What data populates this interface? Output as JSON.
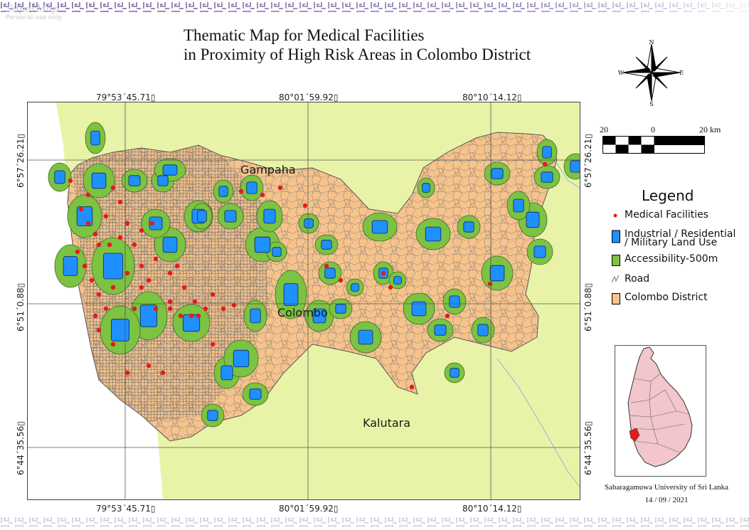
{
  "watermark": {
    "name": "SuperMap",
    "sub": "Personal use only"
  },
  "title": {
    "line1": "Thematic Map for Medical Facilities",
    "line2": "in Proximity of High Risk Areas in Colombo District"
  },
  "north_arrow": {
    "n": "N",
    "s": "S",
    "e": "E",
    "w": "W"
  },
  "grid": {
    "lon_labels": [
      "79°53´45.71▯",
      "80°01´59.92▯",
      "80°10´14.12▯"
    ],
    "lat_labels": [
      "6°57´26.21▯",
      "6°51´0.88▯",
      "6°44´35.56▯"
    ]
  },
  "places": {
    "gampaha": "Gampaha",
    "colombo": "Colombo",
    "kalutara": "Kalutara"
  },
  "scale_bar": {
    "left": "20",
    "mid": "0",
    "right": "20 km"
  },
  "legend": {
    "title": "Legend",
    "items": [
      {
        "label": "Medical Facilities",
        "color": "#e8191c"
      },
      {
        "label_line1": "Industrial / Residential",
        "label_line2": "/ Military Land Use",
        "color": "#1e90ff"
      },
      {
        "label": "Accessibility-500m",
        "color": "#7cc243"
      },
      {
        "label": "Road",
        "color": "#6e6e6e"
      },
      {
        "label": "Colombo District",
        "color": "#f6c38c"
      }
    ]
  },
  "credit": {
    "line1": "Sabaragamuwa University of Sri Lanka",
    "line2": "14 / 09 / 2021"
  },
  "colors": {
    "background_land": "#e9f3a8",
    "district": "#f6c38c",
    "accessibility": "#7cc243",
    "landuse": "#1e90ff",
    "facility": "#e8191c",
    "road": "#7d7d7d",
    "sea": "#ffffff",
    "band": "#7a5fa6"
  }
}
